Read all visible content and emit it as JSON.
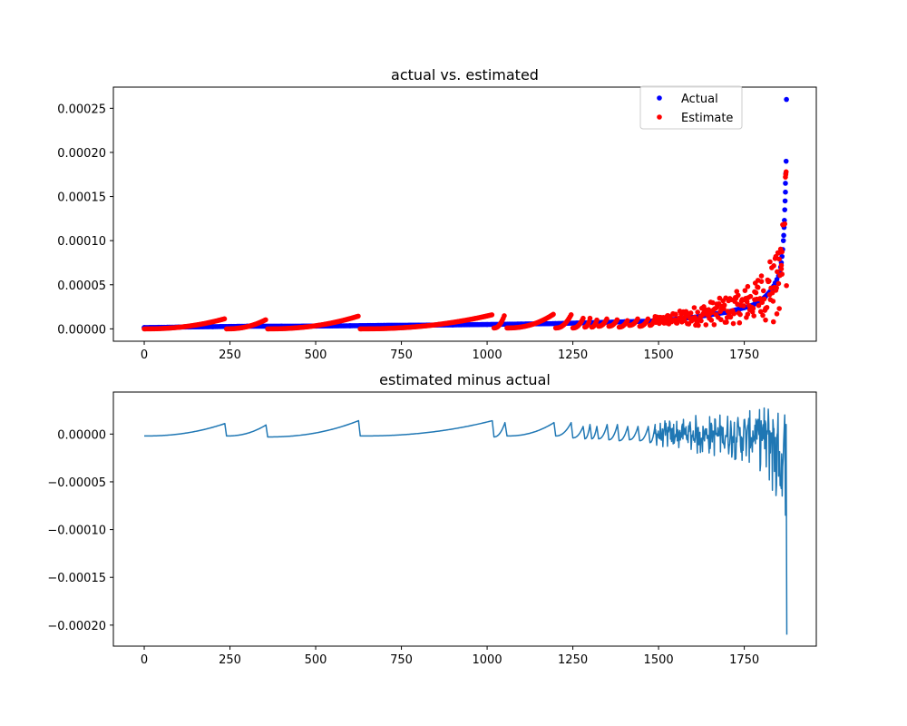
{
  "chart_data": [
    {
      "type": "scatter",
      "title": "actual vs. estimated",
      "xlabel": "",
      "ylabel": "",
      "xlim": [
        -90,
        1960
      ],
      "ylim": [
        -1.4e-05,
        0.000274
      ],
      "xticks": [
        0,
        250,
        500,
        750,
        1000,
        1250,
        1500,
        1750
      ],
      "xtick_labels": [
        "0",
        "250",
        "500",
        "750",
        "1000",
        "1250",
        "1500",
        "1750"
      ],
      "yticks": [
        0,
        5e-05,
        0.0001,
        0.00015,
        0.0002,
        0.00025
      ],
      "ytick_labels": [
        "0.00000",
        "0.00005",
        "0.00010",
        "0.00015",
        "0.00020",
        "0.00025"
      ],
      "grid": false,
      "legend_position": "top-right",
      "colors": {
        "Actual": "#0000ff",
        "Estimate": "#ff0000"
      },
      "series": [
        {
          "name": "Actual",
          "marker": "dot",
          "color": "#0000ff",
          "points": [
            [
              0,
              1.5e-06
            ],
            [
              100,
              2e-06
            ],
            [
              200,
              2.5e-06
            ],
            [
              300,
              3e-06
            ],
            [
              400,
              3e-06
            ],
            [
              500,
              3.2e-06
            ],
            [
              600,
              3.5e-06
            ],
            [
              700,
              4e-06
            ],
            [
              800,
              4.2e-06
            ],
            [
              900,
              4.5e-06
            ],
            [
              1000,
              5e-06
            ],
            [
              1100,
              5.5e-06
            ],
            [
              1200,
              6e-06
            ],
            [
              1300,
              7e-06
            ],
            [
              1400,
              8e-06
            ],
            [
              1450,
              8.5e-06
            ],
            [
              1500,
              9e-06
            ],
            [
              1550,
              1.1e-05
            ],
            [
              1600,
              1.3e-05
            ],
            [
              1650,
              1.6e-05
            ],
            [
              1700,
              1.9e-05
            ],
            [
              1750,
              2.4e-05
            ],
            [
              1775,
              2.7e-05
            ],
            [
              1800,
              3.3e-05
            ],
            [
              1810,
              3.6e-05
            ],
            [
              1820,
              4e-05
            ],
            [
              1830,
              4.5e-05
            ],
            [
              1835,
              4.8e-05
            ],
            [
              1840,
              5.2e-05
            ],
            [
              1845,
              5.6e-05
            ],
            [
              1850,
              6e-05
            ],
            [
              1853,
              6.5e-05
            ],
            [
              1856,
              7e-05
            ],
            [
              1858,
              7.5e-05
            ],
            [
              1860,
              8.2e-05
            ],
            [
              1862,
              9e-05
            ],
            [
              1864,
              0.0001
            ],
            [
              1865,
              0.000106
            ],
            [
              1866,
              0.000115
            ],
            [
              1867,
              0.000123
            ],
            [
              1868,
              0.000135
            ],
            [
              1869,
              0.000145
            ],
            [
              1870,
              0.000155
            ],
            [
              1870,
              0.000165
            ],
            [
              1871,
              0.000176
            ],
            [
              1872,
              0.00019
            ],
            [
              1873,
              0.00026
            ]
          ]
        },
        {
          "name": "Estimate",
          "marker": "dot",
          "color": "#ff0000",
          "segments": [
            [
              0,
              235,
              0,
              1.15e-05
            ],
            [
              240,
              355,
              0,
              1.05e-05
            ],
            [
              360,
              625,
              0,
              1.45e-05
            ],
            [
              630,
              1015,
              0,
              1.6e-05
            ],
            [
              1020,
              1052,
              1e-06,
              1.7e-05
            ],
            [
              1058,
              1195,
              1e-06,
              1.7e-05
            ],
            [
              1200,
              1245,
              1e-06,
              1.6e-05
            ],
            [
              1250,
              1280,
              1e-06,
              1.2e-05
            ],
            [
              1285,
              1300,
              2e-06,
              1.2e-05
            ],
            [
              1305,
              1320,
              2e-06,
              1e-05
            ],
            [
              1325,
              1350,
              3e-06,
              1.2e-05
            ],
            [
              1355,
              1380,
              3e-06,
              1.1e-05
            ],
            [
              1385,
              1410,
              2e-06,
              1e-05
            ],
            [
              1415,
              1440,
              4e-06,
              1.2e-05
            ],
            [
              1445,
              1470,
              3e-06,
              1.2e-05
            ],
            [
              1475,
              1490,
              4e-06,
              1.4e-05
            ]
          ],
          "scatter_x_range": [
            1490,
            1870
          ],
          "scatter_y_range": [
            2e-06,
            8.5e-05
          ],
          "points": [
            [
              1842,
              8.2e-05
            ],
            [
              1850,
              8.6e-05
            ],
            [
              1858,
              7.2e-05
            ],
            [
              1860,
              6.2e-05
            ],
            [
              1862,
              0.000118
            ],
            [
              1865,
              0.000118
            ],
            [
              1868,
              0.000119
            ],
            [
              1870,
              0.000172
            ],
            [
              1871,
              0.000175
            ],
            [
              1872,
              0.000178
            ],
            [
              1873,
              4.9e-05
            ],
            [
              1800,
              6e-05
            ],
            [
              1790,
              5.5e-05
            ],
            [
              1825,
              7.6e-05
            ],
            [
              1835,
              8e-06
            ],
            [
              1845,
              1.7e-05
            ],
            [
              1852,
              2.3e-05
            ],
            [
              1812,
              1e-05
            ],
            [
              1780,
              4.2e-05
            ],
            [
              1760,
              4.8e-05
            ]
          ]
        }
      ]
    },
    {
      "type": "line",
      "title": "estimated minus actual",
      "xlabel": "",
      "ylabel": "",
      "xlim": [
        -90,
        1960
      ],
      "ylim": [
        -0.000222,
        4.4e-05
      ],
      "xticks": [
        0,
        250,
        500,
        750,
        1000,
        1250,
        1500,
        1750
      ],
      "xtick_labels": [
        "0",
        "250",
        "500",
        "750",
        "1000",
        "1250",
        "1500",
        "1750"
      ],
      "yticks": [
        -0.0002,
        -0.00015,
        -0.0001,
        -5e-05,
        0
      ],
      "ytick_labels": [
        "−0.00020",
        "−0.00015",
        "−0.00010",
        "−0.00005",
        "0.00000"
      ],
      "grid": false,
      "color": "#1f77b4",
      "segments": [
        [
          0,
          235,
          -2e-06,
          1.1e-05
        ],
        [
          240,
          355,
          -2e-06,
          9.5e-06
        ],
        [
          360,
          625,
          -3e-06,
          1.4e-05
        ],
        [
          630,
          1015,
          -2e-06,
          1.4e-05
        ],
        [
          1020,
          1052,
          -3e-06,
          1.2e-05
        ],
        [
          1058,
          1195,
          -2e-06,
          1.2e-05
        ],
        [
          1200,
          1245,
          -2e-06,
          1.2e-05
        ],
        [
          1250,
          1280,
          -4e-06,
          8e-06
        ],
        [
          1285,
          1300,
          -5e-06,
          1e-05
        ],
        [
          1305,
          1320,
          -5e-06,
          8e-06
        ],
        [
          1325,
          1350,
          -5e-06,
          1e-05
        ],
        [
          1355,
          1380,
          -6e-06,
          1e-05
        ],
        [
          1385,
          1410,
          -7e-06,
          8e-06
        ],
        [
          1415,
          1440,
          -6e-06,
          8e-06
        ],
        [
          1445,
          1470,
          -7e-06,
          8e-06
        ],
        [
          1475,
          1490,
          -9e-06,
          1e-05
        ]
      ],
      "noisy_region": {
        "x_range": [
          1490,
          1872
        ],
        "envelope": [
          [
            1490,
            -1.2e-05,
            1.2e-05
          ],
          [
            1600,
            -2.2e-05,
            2e-05
          ],
          [
            1700,
            -2.5e-05,
            2.2e-05
          ],
          [
            1780,
            -3.2e-05,
            2.5e-05
          ],
          [
            1820,
            -5e-05,
            3.3e-05
          ],
          [
            1850,
            -8.5e-05,
            2.5e-05
          ],
          [
            1870,
            -9.5e-05,
            2.8e-05
          ]
        ]
      },
      "final_points": [
        [
          1868,
          2e-05
        ],
        [
          1870,
          -8.5e-05
        ],
        [
          1872,
          1e-05
        ],
        [
          1874,
          -0.00021
        ]
      ]
    }
  ]
}
